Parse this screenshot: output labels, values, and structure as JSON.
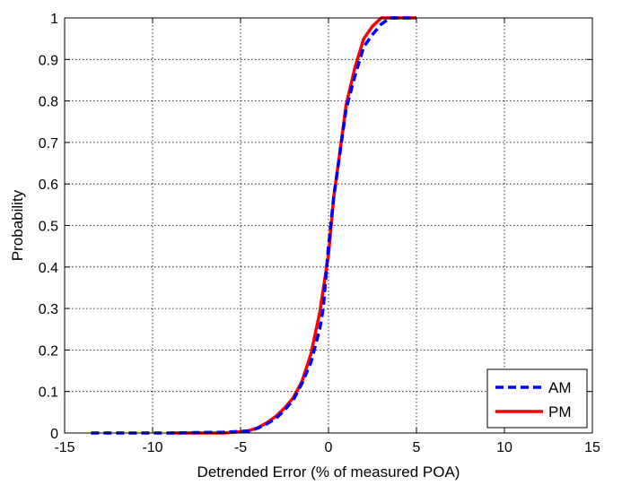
{
  "chart_data": {
    "type": "line",
    "title": "",
    "xlabel": "Detrended Error (% of measured POA)",
    "ylabel": "Probability",
    "xlim": [
      -15,
      15
    ],
    "ylim": [
      0,
      1
    ],
    "xticks": [
      -15,
      -10,
      -5,
      0,
      5,
      10,
      15
    ],
    "yticks": [
      0,
      0.1,
      0.2,
      0.3,
      0.4,
      0.5,
      0.6,
      0.7,
      0.8,
      0.9,
      1
    ],
    "xtick_labels": [
      "-15",
      "-10",
      "-5",
      "0",
      "5",
      "10",
      "15"
    ],
    "ytick_labels": [
      "0",
      "0.1",
      "0.2",
      "0.3",
      "0.4",
      "0.5",
      "0.6",
      "0.7",
      "0.8",
      "0.9",
      "1"
    ],
    "grid": true,
    "legend_position": "bottom-right",
    "series": [
      {
        "name": "AM",
        "color": "#0000ff",
        "style": "dashed",
        "x": [
          -13.5,
          -9.0,
          -6.0,
          -4.5,
          -4.0,
          -3.5,
          -3.0,
          -2.5,
          -2.0,
          -1.5,
          -1.0,
          -0.5,
          -0.3,
          0.0,
          0.3,
          0.5,
          1.0,
          1.5,
          2.0,
          2.5,
          3.0,
          3.5,
          5.0
        ],
        "y": [
          0.0,
          0.0,
          0.002,
          0.005,
          0.012,
          0.022,
          0.035,
          0.055,
          0.08,
          0.12,
          0.17,
          0.25,
          0.3,
          0.45,
          0.57,
          0.63,
          0.78,
          0.86,
          0.93,
          0.96,
          0.985,
          1.0,
          1.0
        ]
      },
      {
        "name": "PM",
        "color": "#ff0000",
        "style": "solid",
        "x": [
          -9.0,
          -6.0,
          -5.0,
          -4.5,
          -4.0,
          -3.5,
          -3.0,
          -2.5,
          -2.0,
          -1.5,
          -1.0,
          -0.5,
          0.0,
          0.3,
          0.5,
          1.0,
          1.5,
          2.0,
          2.5,
          3.0,
          5.0
        ],
        "y": [
          0.0,
          0.0,
          0.003,
          0.006,
          0.013,
          0.025,
          0.04,
          0.06,
          0.085,
          0.125,
          0.19,
          0.29,
          0.43,
          0.57,
          0.63,
          0.79,
          0.88,
          0.95,
          0.98,
          1.0,
          1.0
        ]
      }
    ]
  }
}
